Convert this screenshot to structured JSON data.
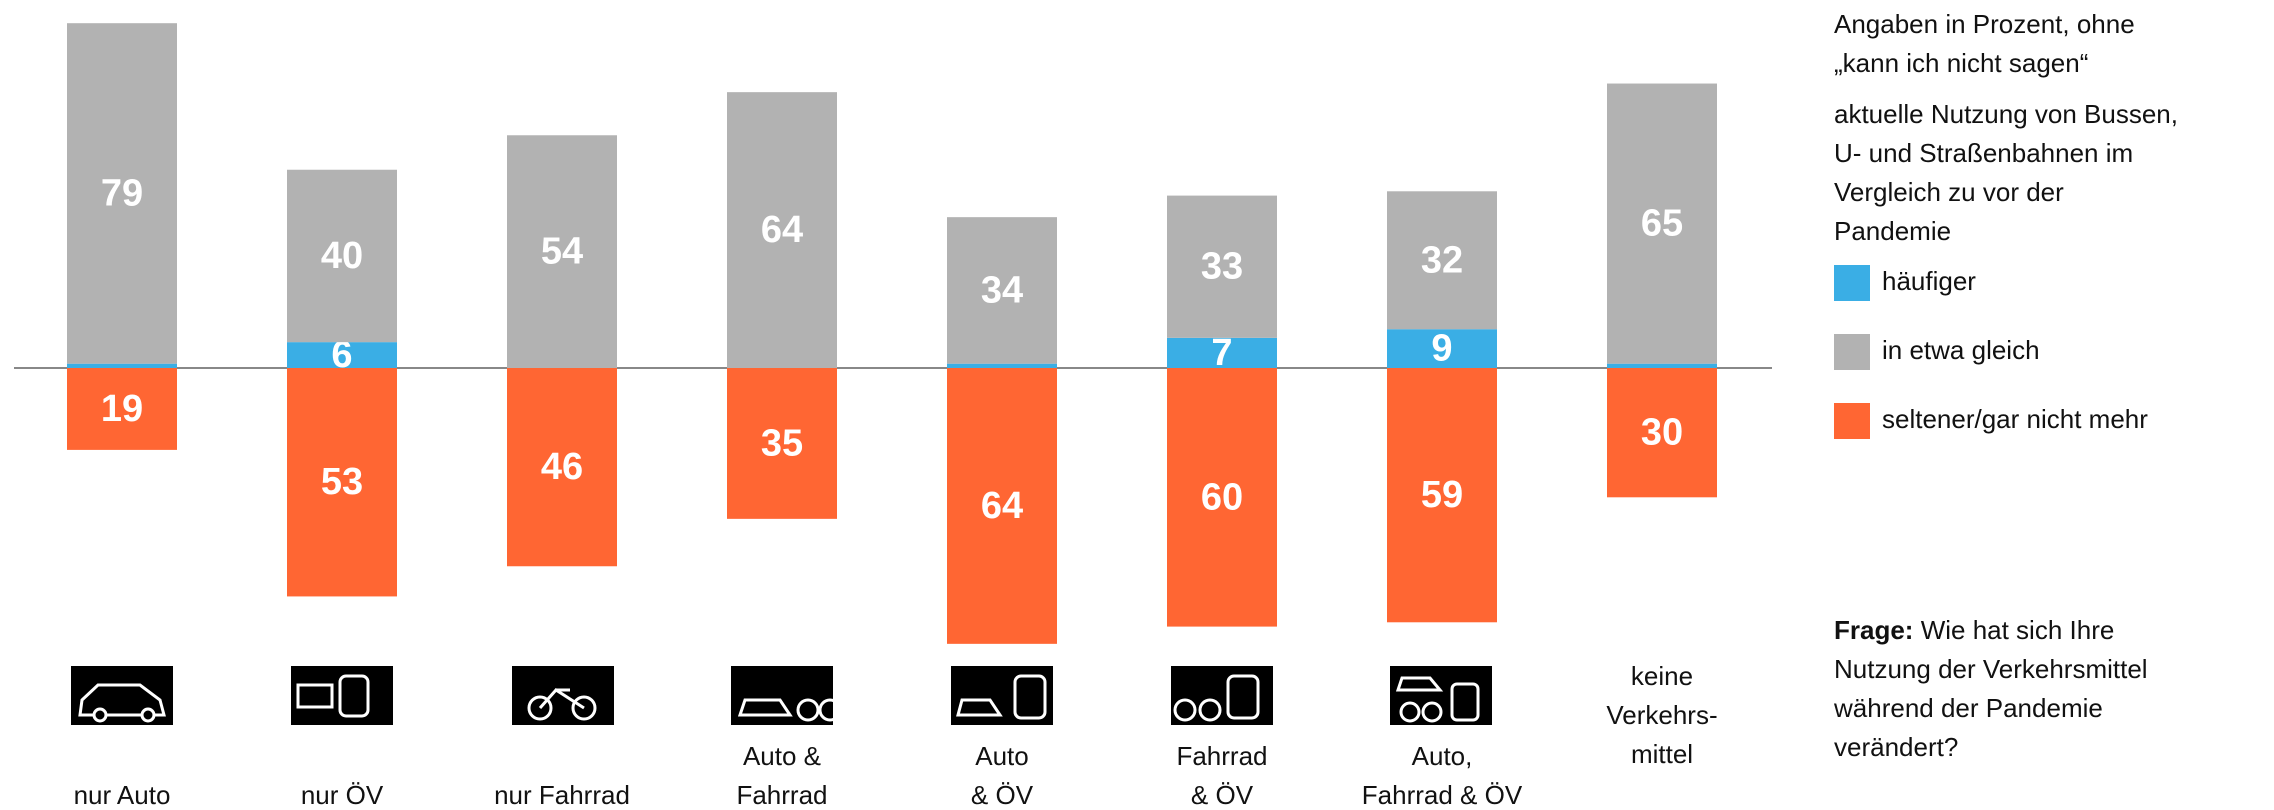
{
  "chart_data": {
    "type": "diverging-stacked-bar",
    "categories": [
      "nur Auto",
      "nur ÖV",
      "nur Fahrrad",
      "Auto &\nFahrrad",
      "Auto\n& ÖV",
      "Fahrrad\n& ÖV",
      "Auto,\nFahrrad & ÖV",
      "keine\nVerkehrs-\nmittel"
    ],
    "series": [
      {
        "name": "häufiger",
        "color": "#3aaee5",
        "stack": "above",
        "values": [
          1,
          6,
          0,
          0,
          1,
          7,
          9,
          1
        ],
        "value_labels": [
          null,
          "6",
          null,
          null,
          null,
          "7",
          "9",
          null
        ]
      },
      {
        "name": "in etwa gleich",
        "color": "#b2b2b2",
        "stack": "above",
        "values": [
          79,
          40,
          54,
          64,
          34,
          33,
          32,
          65
        ]
      },
      {
        "name": "seltener/gar nicht mehr",
        "color": "#ff6633",
        "stack": "below",
        "values": [
          19,
          53,
          46,
          35,
          64,
          60,
          59,
          30
        ]
      }
    ],
    "note": [
      "Angaben in Prozent, ohne",
      "„kann ich nicht sagen“"
    ],
    "legend_title": [
      "aktuelle Nutzung von Bussen,",
      "U- und Straßenbahnen im",
      "Vergleich zu vor der",
      "Pandemie"
    ],
    "question_label": "Frage:",
    "question": [
      " Wie hat sich Ihre",
      "Nutzung der Verkehrsmittel",
      "während der Pandemie",
      "verändert?"
    ]
  }
}
